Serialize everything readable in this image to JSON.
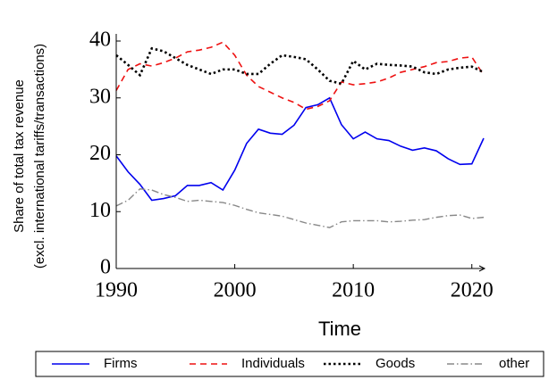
{
  "chart_data": {
    "type": "line",
    "ylabel": "Share of total tax revenue",
    "ylabel_sub": "(excl. international tariffs/transactions)",
    "xlabel": "Time",
    "x": [
      1990,
      1991,
      1992,
      1993,
      1994,
      1995,
      1996,
      1997,
      1998,
      1999,
      2000,
      2001,
      2002,
      2003,
      2004,
      2005,
      2006,
      2007,
      2008,
      2009,
      2010,
      2011,
      2012,
      2013,
      2014,
      2015,
      2016,
      2017,
      2018,
      2019,
      2020,
      2021
    ],
    "xlim": [
      1990,
      2021
    ],
    "xticks": [
      1990,
      2000,
      2010,
      2020
    ],
    "ylim": [
      0,
      40
    ],
    "yticks": [
      0,
      10,
      20,
      30,
      40
    ],
    "legend": "bottom",
    "series": [
      {
        "name": "Firms",
        "color": "#0000ee",
        "dash": "solid",
        "values": [
          19.8,
          17,
          14.8,
          12,
          12.3,
          12.8,
          14.6,
          14.6,
          15.1,
          13.8,
          17.3,
          22,
          24.5,
          23.8,
          23.6,
          25.2,
          28.3,
          28.8,
          30,
          25.3,
          22.8,
          24,
          22.8,
          22.5,
          21.5,
          20.8,
          21.2,
          20.7,
          19.3,
          18.3,
          18.4,
          22.9
        ]
      },
      {
        "name": "Individuals",
        "color": "#ee1111",
        "dash": "dashed",
        "values": [
          31.3,
          35,
          36,
          35.6,
          36.2,
          37,
          38.1,
          38.4,
          38.9,
          39.8,
          37.5,
          34,
          32,
          31,
          30,
          29.2,
          28,
          28.5,
          29.5,
          32.8,
          32.3,
          32.5,
          32.8,
          33.5,
          34.5,
          35,
          35.5,
          36.2,
          36.4,
          37,
          37.2,
          34
        ]
      },
      {
        "name": "Goods",
        "color": "#000000",
        "dash": "dotted",
        "values": [
          37.5,
          35.8,
          34,
          38.7,
          38.2,
          37,
          35.8,
          35,
          34.2,
          35,
          35,
          34.2,
          34.2,
          36,
          37.5,
          37.2,
          36.8,
          35,
          33,
          32.5,
          36.5,
          35,
          36,
          35.8,
          35.7,
          35.5,
          34.5,
          34.2,
          35,
          35.3,
          35.5,
          34.5
        ]
      },
      {
        "name": "other",
        "color": "#888888",
        "dash": "dashdot",
        "values": [
          11,
          12,
          14,
          13.8,
          13,
          12.5,
          11.8,
          12,
          11.8,
          11.6,
          11.1,
          10.4,
          9.8,
          9.5,
          9.2,
          8.6,
          8,
          7.6,
          7.2,
          8.2,
          8.4,
          8.4,
          8.4,
          8.2,
          8.3,
          8.5,
          8.6,
          9,
          9.3,
          9.4,
          8.8,
          9
        ]
      }
    ]
  }
}
